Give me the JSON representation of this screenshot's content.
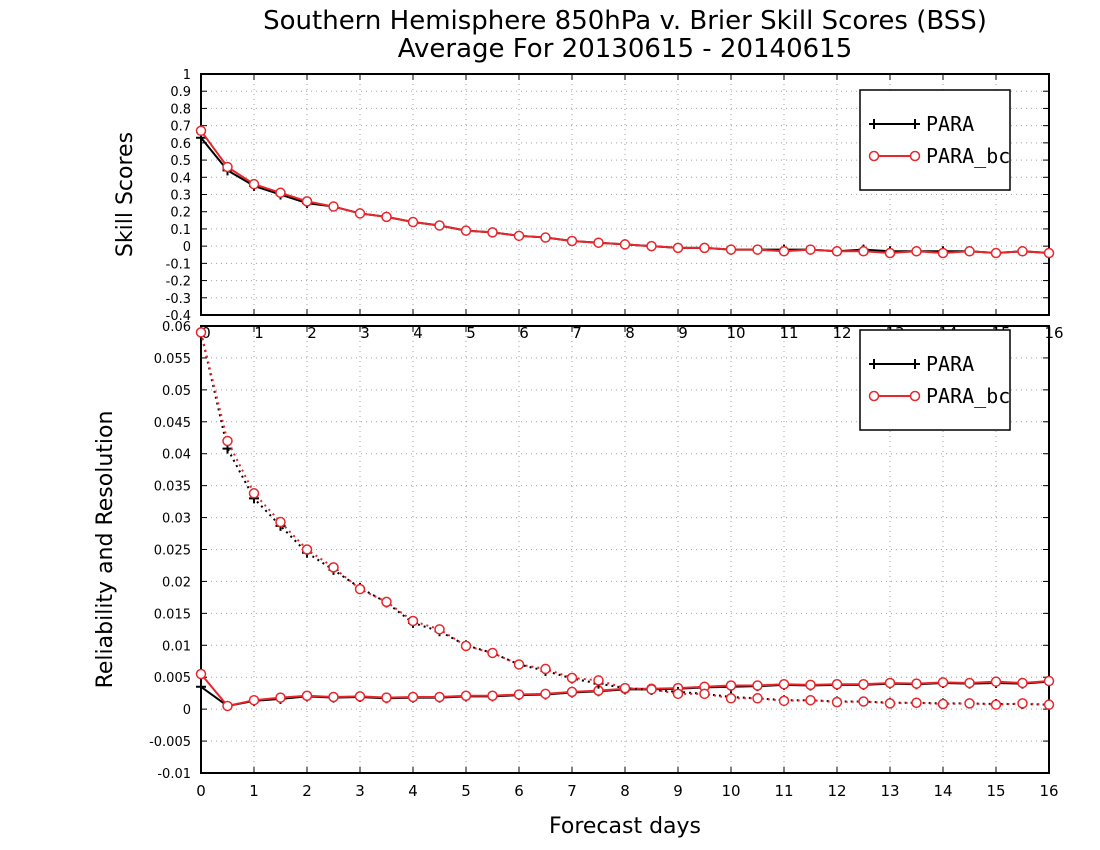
{
  "title_line1": "Southern Hemisphere 850hPa v. Brier Skill Scores (BSS)",
  "title_line2": "Average For 20130615 - 20140615",
  "xlabel": "Forecast days",
  "colors": {
    "PARA": "#000000",
    "PARA_bc": "#e8262b",
    "grid": "#a0a0a0"
  },
  "chart_data": [
    {
      "type": "line",
      "ylabel": "Skill Scores",
      "xlim": [
        0,
        16
      ],
      "ylim": [
        -0.4,
        1
      ],
      "yticks": [
        "1",
        "0.9",
        "0.8",
        "0.7",
        "0.6",
        "0.5",
        "0.4",
        "0.3",
        "0.2",
        "0.1",
        "0",
        "-0.1",
        "-0.2",
        "-0.3",
        "-0.4"
      ],
      "xticks": [
        "0",
        "1",
        "2",
        "3",
        "4",
        "5",
        "6",
        "7",
        "8",
        "9",
        "10",
        "11",
        "12",
        "13",
        "14",
        "15",
        "16"
      ],
      "legend": {
        "position": "top-right",
        "entries": [
          "PARA",
          "PARA_bc"
        ]
      },
      "x": [
        0,
        0.5,
        1,
        1.5,
        2,
        2.5,
        3,
        3.5,
        4,
        4.5,
        5,
        5.5,
        6,
        6.5,
        7,
        7.5,
        8,
        8.5,
        9,
        9.5,
        10,
        10.5,
        11,
        11.5,
        12,
        12.5,
        13,
        13.5,
        14,
        14.5,
        15,
        15.5,
        16
      ],
      "series": [
        {
          "name": "PARA",
          "marker": "plus",
          "dash": false,
          "values": [
            0.63,
            0.44,
            0.35,
            0.3,
            0.25,
            0.23,
            0.19,
            0.17,
            0.14,
            0.12,
            0.09,
            0.08,
            0.06,
            0.05,
            0.03,
            0.02,
            0.01,
            0.0,
            -0.01,
            -0.01,
            -0.02,
            -0.02,
            -0.02,
            -0.02,
            -0.03,
            -0.02,
            -0.03,
            -0.03,
            -0.03,
            -0.03,
            -0.04,
            -0.03,
            -0.04
          ]
        },
        {
          "name": "PARA_bc",
          "marker": "circle",
          "dash": false,
          "values": [
            0.67,
            0.46,
            0.36,
            0.31,
            0.26,
            0.23,
            0.19,
            0.17,
            0.14,
            0.12,
            0.09,
            0.08,
            0.06,
            0.05,
            0.03,
            0.02,
            0.01,
            0.0,
            -0.01,
            -0.01,
            -0.02,
            -0.02,
            -0.03,
            -0.02,
            -0.03,
            -0.03,
            -0.04,
            -0.03,
            -0.04,
            -0.03,
            -0.04,
            -0.03,
            -0.04
          ]
        }
      ]
    },
    {
      "type": "line",
      "ylabel": "Reliability and Resolution",
      "xlim": [
        0,
        16
      ],
      "ylim": [
        -0.01,
        0.06
      ],
      "yticks": [
        "0.06",
        "0.055",
        "0.05",
        "0.045",
        "0.04",
        "0.035",
        "0.03",
        "0.025",
        "0.02",
        "0.015",
        "0.01",
        "0.005",
        "0",
        "-0.005",
        "-0.01"
      ],
      "xticks": [
        "0",
        "1",
        "2",
        "3",
        "4",
        "5",
        "6",
        "7",
        "8",
        "9",
        "10",
        "11",
        "12",
        "13",
        "14",
        "15",
        "16"
      ],
      "legend": {
        "position": "top-right",
        "entries": [
          "PARA",
          "PARA_bc"
        ]
      },
      "x": [
        0,
        0.5,
        1,
        1.5,
        2,
        2.5,
        3,
        3.5,
        4,
        4.5,
        5,
        5.5,
        6,
        6.5,
        7,
        7.5,
        8,
        8.5,
        9,
        9.5,
        10,
        10.5,
        11,
        11.5,
        12,
        12.5,
        13,
        13.5,
        14,
        14.5,
        15,
        15.5,
        16
      ],
      "series": [
        {
          "name": "PARA",
          "marker": "plus",
          "dash": false,
          "values": [
            0.0035,
            0.0005,
            0.0013,
            0.0016,
            0.002,
            0.0018,
            0.0019,
            0.0017,
            0.0018,
            0.0018,
            0.002,
            0.002,
            0.0022,
            0.0023,
            0.0026,
            0.0028,
            0.0031,
            0.0031,
            0.0032,
            0.0034,
            0.0035,
            0.0036,
            0.0038,
            0.0037,
            0.0038,
            0.0038,
            0.004,
            0.0039,
            0.0041,
            0.004,
            0.0041,
            0.004,
            0.0043
          ]
        },
        {
          "name": "PARA_bc",
          "marker": "circle",
          "dash": false,
          "values": [
            0.0055,
            0.0005,
            0.0014,
            0.0018,
            0.0021,
            0.0019,
            0.002,
            0.0018,
            0.0019,
            0.0019,
            0.0021,
            0.0021,
            0.0023,
            0.0024,
            0.0027,
            0.0029,
            0.0032,
            0.0032,
            0.0033,
            0.0035,
            0.0037,
            0.0037,
            0.0039,
            0.0038,
            0.0039,
            0.0039,
            0.0041,
            0.004,
            0.0042,
            0.0041,
            0.0043,
            0.0041,
            0.0044
          ]
        },
        {
          "name": "PARA",
          "marker": "plus",
          "dash": true,
          "values": [
            0.059,
            0.0408,
            0.033,
            0.0287,
            0.0245,
            0.0218,
            0.019,
            0.0167,
            0.0135,
            0.0122,
            0.01,
            0.0088,
            0.007,
            0.006,
            0.0048,
            0.004,
            0.0033,
            0.003,
            0.0027,
            0.0024,
            0.0019,
            0.0017,
            0.0014,
            0.0014,
            0.0012,
            0.0012,
            0.001,
            0.001,
            0.0009,
            0.0009,
            0.0008,
            0.0008,
            0.0007
          ]
        },
        {
          "name": "PARA_bc",
          "marker": "circle",
          "dash": true,
          "values": [
            0.059,
            0.042,
            0.0338,
            0.0293,
            0.025,
            0.0222,
            0.0188,
            0.0168,
            0.0138,
            0.0125,
            0.0099,
            0.0088,
            0.007,
            0.0063,
            0.0049,
            0.0045,
            0.0033,
            0.0031,
            0.0024,
            0.0024,
            0.0017,
            0.0017,
            0.0013,
            0.0014,
            0.0011,
            0.0012,
            0.0009,
            0.001,
            0.0008,
            0.0009,
            0.0007,
            0.0009,
            0.0007
          ]
        }
      ]
    }
  ]
}
